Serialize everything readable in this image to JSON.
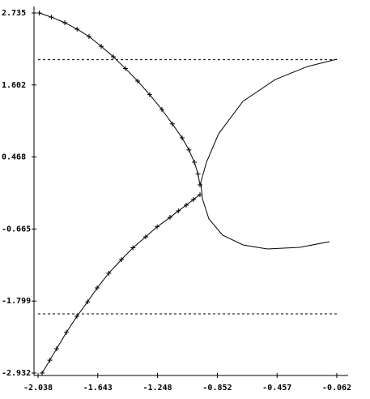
{
  "chart_data": {
    "type": "line",
    "xlim": [
      -2.038,
      -0.062
    ],
    "xticks": [
      -2.038,
      -1.643,
      -1.248,
      -0.852,
      -0.457,
      -0.062
    ],
    "ylim": [
      -2.932,
      2.735
    ],
    "yticks": [
      -2.932,
      -1.799,
      -0.665,
      0.468,
      1.602,
      2.735
    ],
    "reference_lines": [
      2.0,
      -2.0
    ],
    "series": [
      {
        "color": "#000000",
        "markers": true,
        "x": [
          -2.03,
          -1.95,
          -1.861,
          -1.78,
          -1.701,
          -1.62,
          -1.54,
          -1.46,
          -1.379,
          -1.3,
          -1.219,
          -1.15,
          -1.085,
          -1.04,
          -1.004,
          -0.98,
          -0.967
        ],
        "y": [
          2.735,
          2.67,
          2.582,
          2.48,
          2.365,
          2.21,
          2.046,
          1.86,
          1.663,
          1.45,
          1.216,
          0.99,
          0.769,
          0.58,
          0.386,
          0.2,
          0.029
        ]
      },
      {
        "color": "#000000",
        "markers": true,
        "x": [
          -2.011,
          -1.96,
          -1.915,
          -1.85,
          -1.781,
          -1.71,
          -1.647,
          -1.57,
          -1.486,
          -1.41,
          -1.326,
          -1.25,
          -1.165,
          -1.11,
          -1.058,
          -1.01,
          -0.967
        ],
        "y": [
          -2.932,
          -2.73,
          -2.549,
          -2.29,
          -2.039,
          -1.81,
          -1.592,
          -1.36,
          -1.145,
          -0.96,
          -0.788,
          -0.63,
          -0.482,
          -0.38,
          -0.29,
          -0.2,
          -0.124
        ]
      },
      {
        "color": "#000000",
        "markers": false,
        "x": [
          -0.062,
          -0.255,
          -0.469,
          -0.683,
          -0.844,
          -0.924,
          -0.962,
          -0.951,
          -0.908,
          -0.817,
          -0.683,
          -0.522,
          -0.308,
          -0.11
        ],
        "y": [
          2.008,
          1.893,
          1.688,
          1.344,
          0.833,
          0.386,
          0.067,
          -0.188,
          -0.507,
          -0.762,
          -0.915,
          -0.979,
          -0.954,
          -0.864
        ]
      }
    ]
  }
}
